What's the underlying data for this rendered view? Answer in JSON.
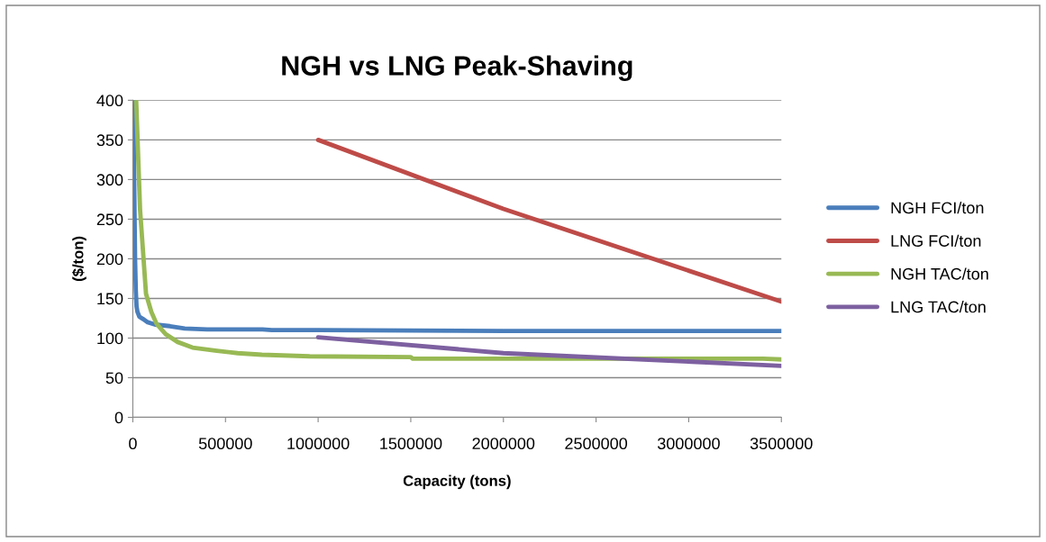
{
  "chart_data": {
    "type": "line",
    "title": "NGH vs LNG Peak-Shaving",
    "xlabel": "Capacity (tons)",
    "ylabel": "($/ton)",
    "xlim": [
      0,
      3500000
    ],
    "xticks": [
      0,
      500000,
      1000000,
      1500000,
      2000000,
      2500000,
      3000000,
      3500000
    ],
    "ylim": [
      0,
      400
    ],
    "yticks": [
      0,
      50,
      100,
      150,
      200,
      250,
      300,
      350,
      400
    ],
    "grid": "y",
    "legend": "right",
    "marker": "none",
    "line_style": "solid",
    "series": [
      {
        "name": "NGH FCI/ton",
        "color": "#4a7ebb",
        "x": [
          3000,
          8000,
          12000,
          16000,
          20000,
          25000,
          35000,
          55000,
          80000,
          120000,
          200000,
          280000,
          400000,
          700000,
          750000,
          1000000,
          2000000,
          3500000
        ],
        "values": [
          400,
          280,
          200,
          160,
          140,
          133,
          127,
          124,
          120,
          117,
          115,
          112,
          111,
          111,
          110,
          110,
          109,
          109
        ]
      },
      {
        "name": "LNG FCI/ton",
        "color": "#be4b48",
        "x": [
          1000000,
          2000000,
          3500000
        ],
        "values": [
          350,
          263,
          146
        ]
      },
      {
        "name": "NGH TAC/ton",
        "color": "#98b954",
        "x": [
          18000,
          39000,
          71000,
          100000,
          128000,
          177000,
          242000,
          322000,
          453000,
          565000,
          696000,
          954000,
          1500000,
          1510000,
          3400000,
          3500000
        ],
        "values": [
          400,
          262,
          156,
          133,
          118,
          105,
          95,
          88,
          84,
          81,
          79,
          77,
          76,
          74,
          74,
          73
        ]
      },
      {
        "name": "LNG TAC/ton",
        "color": "#7d60a0",
        "x": [
          1000000,
          2000000,
          3500000
        ],
        "values": [
          101,
          81,
          65
        ]
      }
    ]
  }
}
